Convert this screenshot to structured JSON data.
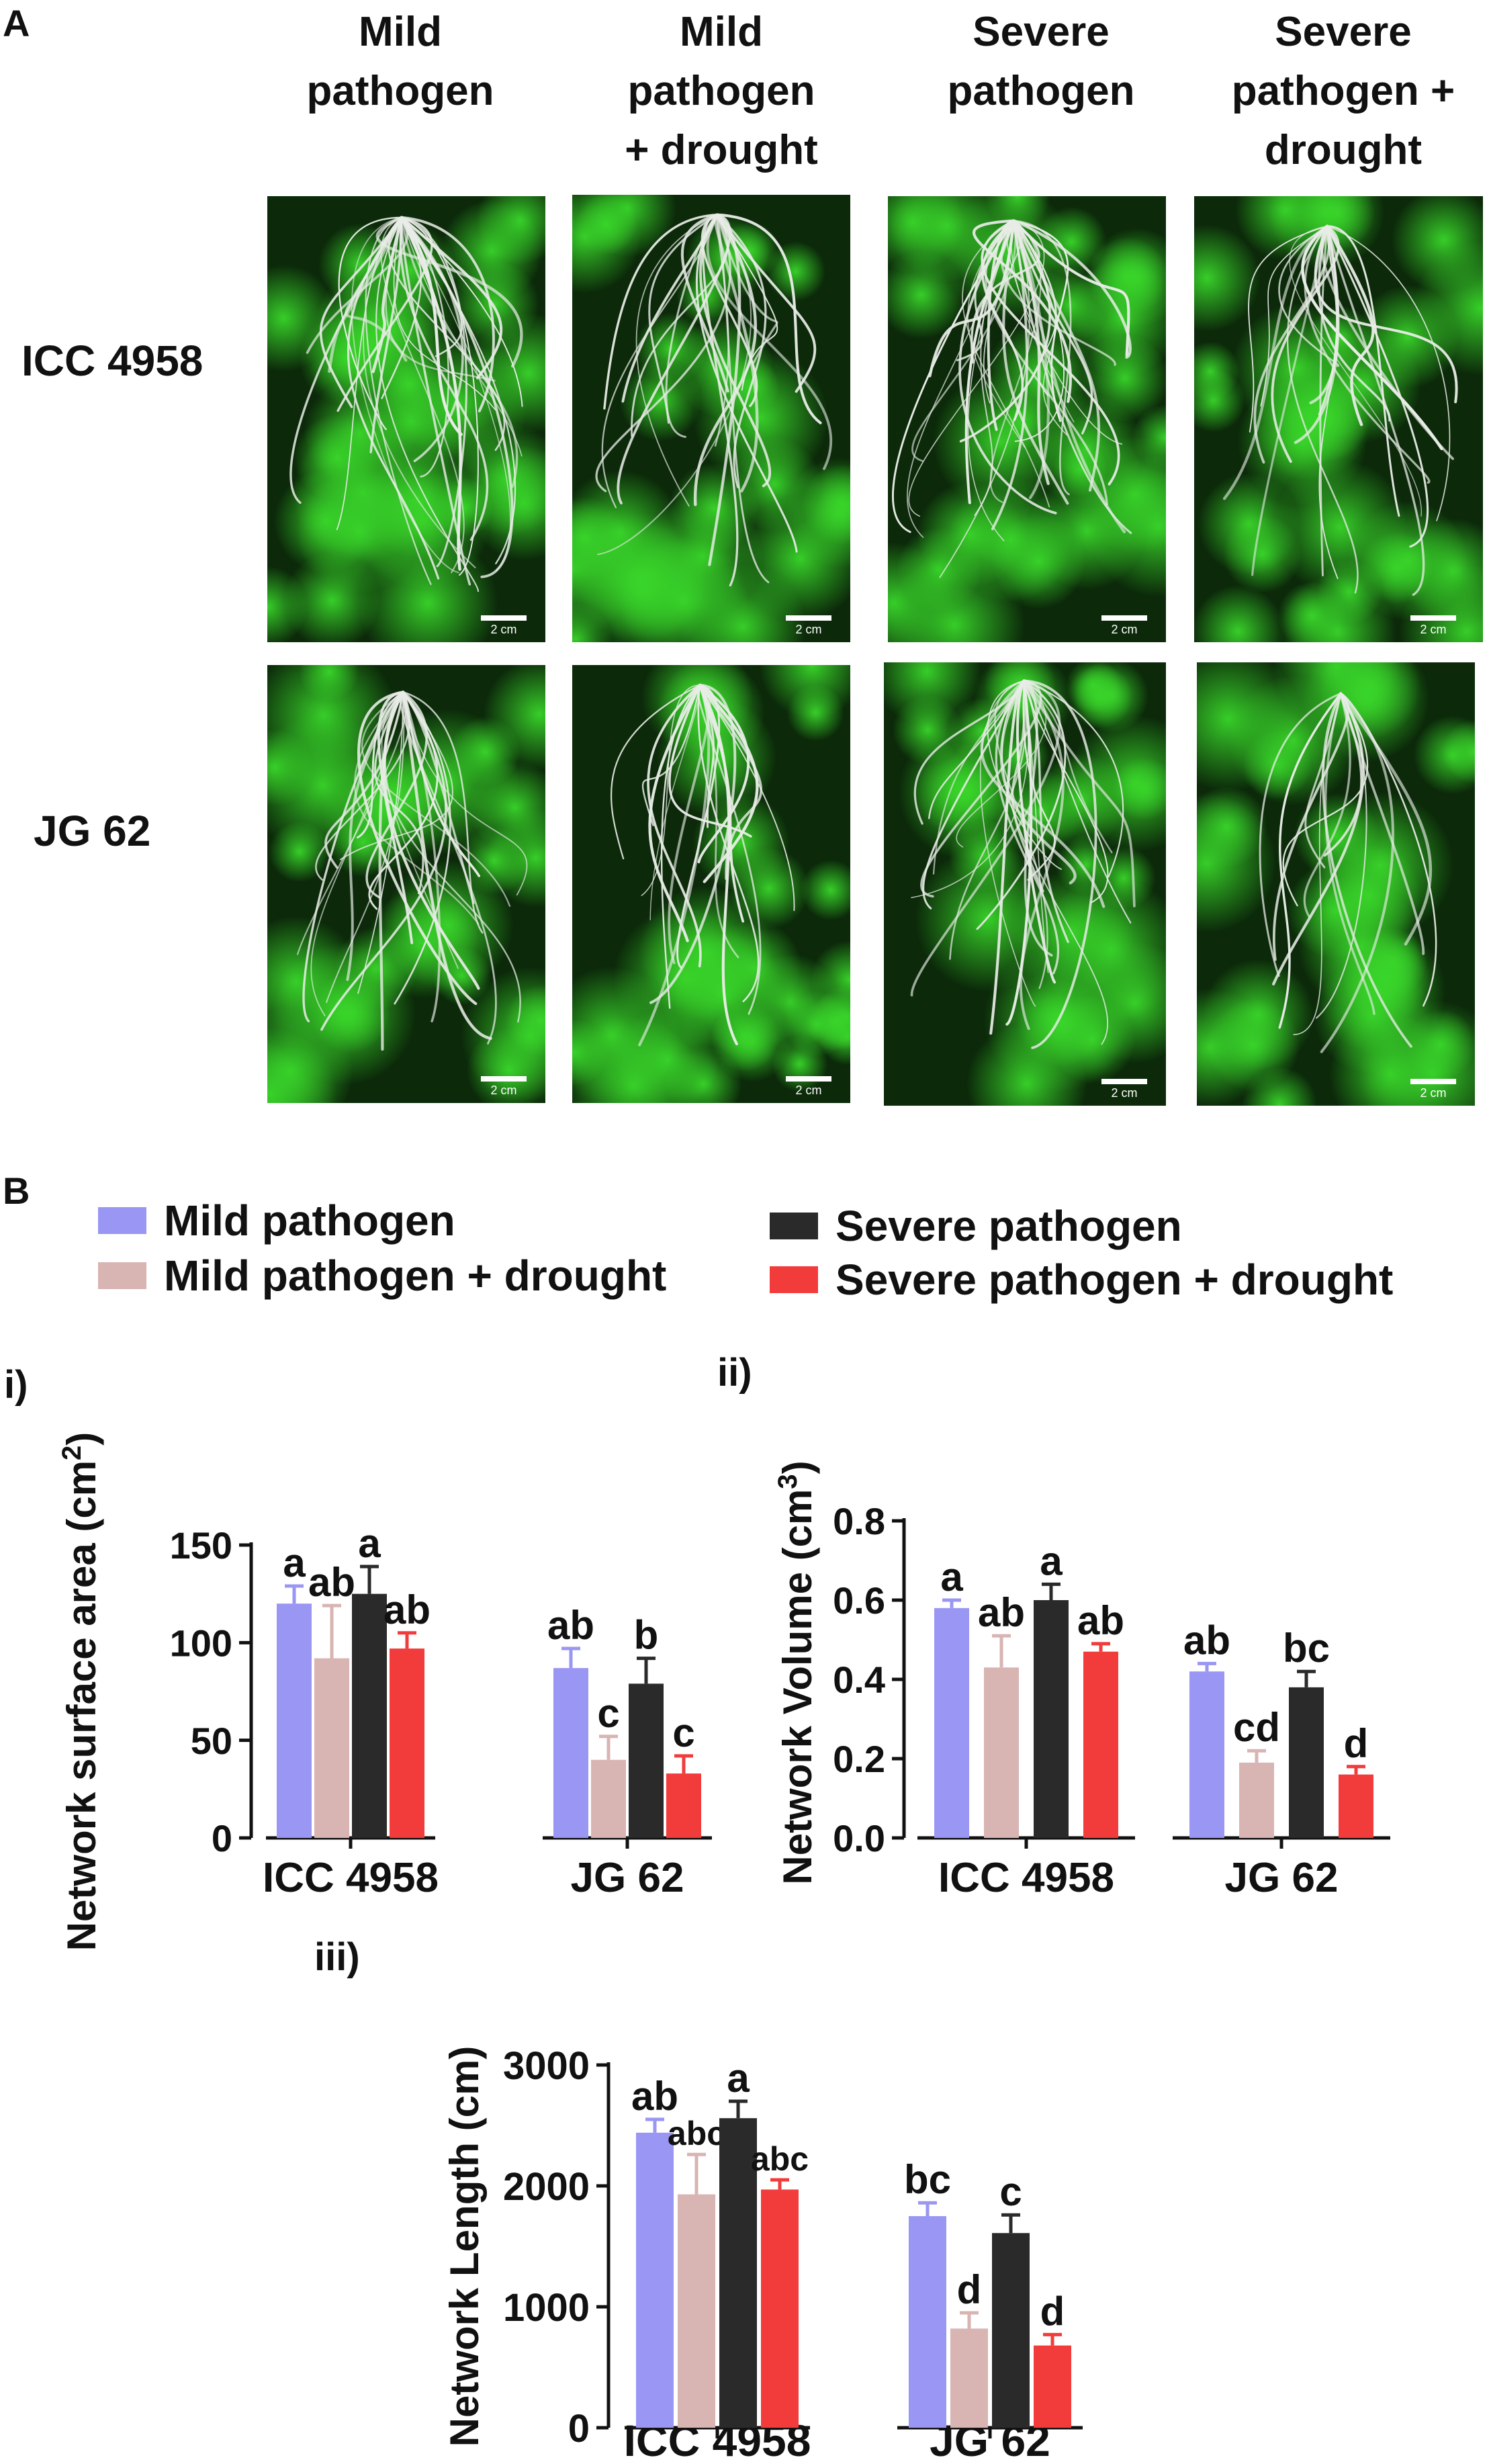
{
  "panel_a": {
    "letter": "A",
    "columns": [
      "Mild\npathogen",
      "Mild\npathogen\n+ drought",
      "Severe\npathogen",
      "Severe\npathogen +\ndrought"
    ],
    "rows": [
      "ICC 4958",
      "JG 62"
    ],
    "scale_label": "2 cm",
    "colors": {
      "background": "#0c2a0a",
      "glow": "#39d62a",
      "roots": "#e8ece6"
    }
  },
  "panel_b": {
    "letter": "B",
    "legend": [
      {
        "name": "Mild pathogen",
        "color": "#9a96f4"
      },
      {
        "name": "Mild pathogen + drought",
        "color": "#d8b4b2"
      },
      {
        "name": "Severe pathogen",
        "color": "#2a2a2a"
      },
      {
        "name": "Severe pathogen + drought",
        "color": "#f23c3c"
      }
    ]
  },
  "chart_data": [
    {
      "type": "bar",
      "panel_label": "i)",
      "ylabel": "Network surface area (cm",
      "ylabel_sup": "2",
      "ylabel_close": ")",
      "categories": [
        "ICC 4958",
        "JG 62"
      ],
      "ylim": [
        0,
        150
      ],
      "yticks": [
        0,
        50,
        100,
        150
      ],
      "series": [
        {
          "name": "Mild pathogen",
          "color": "#9a96f4",
          "values": [
            120,
            87
          ],
          "errors": [
            9,
            10
          ],
          "labels": [
            "a",
            "ab"
          ]
        },
        {
          "name": "Mild pathogen + drought",
          "color": "#d8b4b2",
          "values": [
            92,
            40
          ],
          "errors": [
            27,
            12
          ],
          "labels": [
            "ab",
            "c"
          ]
        },
        {
          "name": "Severe pathogen",
          "color": "#2a2a2a",
          "values": [
            125,
            79
          ],
          "errors": [
            14,
            13
          ],
          "labels": [
            "a",
            "b"
          ]
        },
        {
          "name": "Severe pathogen + drought",
          "color": "#f23c3c",
          "values": [
            97,
            33
          ],
          "errors": [
            8,
            9
          ],
          "labels": [
            "ab",
            "c"
          ]
        }
      ]
    },
    {
      "type": "bar",
      "panel_label": "ii)",
      "ylabel": "Network Volume (cm",
      "ylabel_sup": "3",
      "ylabel_close": ")",
      "categories": [
        "ICC 4958",
        "JG 62"
      ],
      "ylim": [
        0,
        0.8
      ],
      "yticks": [
        0.0,
        0.2,
        0.4,
        0.6,
        0.8
      ],
      "ytick_labels": [
        "0.0",
        "0.2",
        "0.4",
        "0.6",
        "0.8"
      ],
      "series": [
        {
          "name": "Mild pathogen",
          "color": "#9a96f4",
          "values": [
            0.58,
            0.42
          ],
          "errors": [
            0.02,
            0.02
          ],
          "labels": [
            "a",
            "ab"
          ]
        },
        {
          "name": "Mild pathogen + drought",
          "color": "#d8b4b2",
          "values": [
            0.43,
            0.19
          ],
          "errors": [
            0.08,
            0.03
          ],
          "labels": [
            "ab",
            "cd"
          ]
        },
        {
          "name": "Severe pathogen",
          "color": "#2a2a2a",
          "values": [
            0.6,
            0.38
          ],
          "errors": [
            0.04,
            0.04
          ],
          "labels": [
            "a",
            "bc"
          ]
        },
        {
          "name": "Severe pathogen + drought",
          "color": "#f23c3c",
          "values": [
            0.47,
            0.16
          ],
          "errors": [
            0.02,
            0.02
          ],
          "labels": [
            "ab",
            "d"
          ]
        }
      ]
    },
    {
      "type": "bar",
      "panel_label": "iii)",
      "ylabel": "Network Length (cm)",
      "ylabel_sup": "",
      "ylabel_close": "",
      "categories": [
        "ICC 4958",
        "JG 62"
      ],
      "ylim": [
        0,
        3000
      ],
      "yticks": [
        0,
        1000,
        2000,
        3000
      ],
      "series": [
        {
          "name": "Mild pathogen",
          "color": "#9a96f4",
          "values": [
            2440,
            1750
          ],
          "errors": [
            110,
            110
          ],
          "labels": [
            "ab",
            "bc"
          ]
        },
        {
          "name": "Mild pathogen + drought",
          "color": "#d8b4b2",
          "values": [
            1930,
            820
          ],
          "errors": [
            330,
            130
          ],
          "labels": [
            "abc",
            "d"
          ]
        },
        {
          "name": "Severe pathogen",
          "color": "#2a2a2a",
          "values": [
            2560,
            1610
          ],
          "errors": [
            140,
            150
          ],
          "labels": [
            "a",
            "c"
          ]
        },
        {
          "name": "Severe pathogen + drought",
          "color": "#f23c3c",
          "values": [
            1970,
            680
          ],
          "errors": [
            80,
            90
          ],
          "labels": [
            "abc",
            "d"
          ]
        }
      ]
    }
  ]
}
